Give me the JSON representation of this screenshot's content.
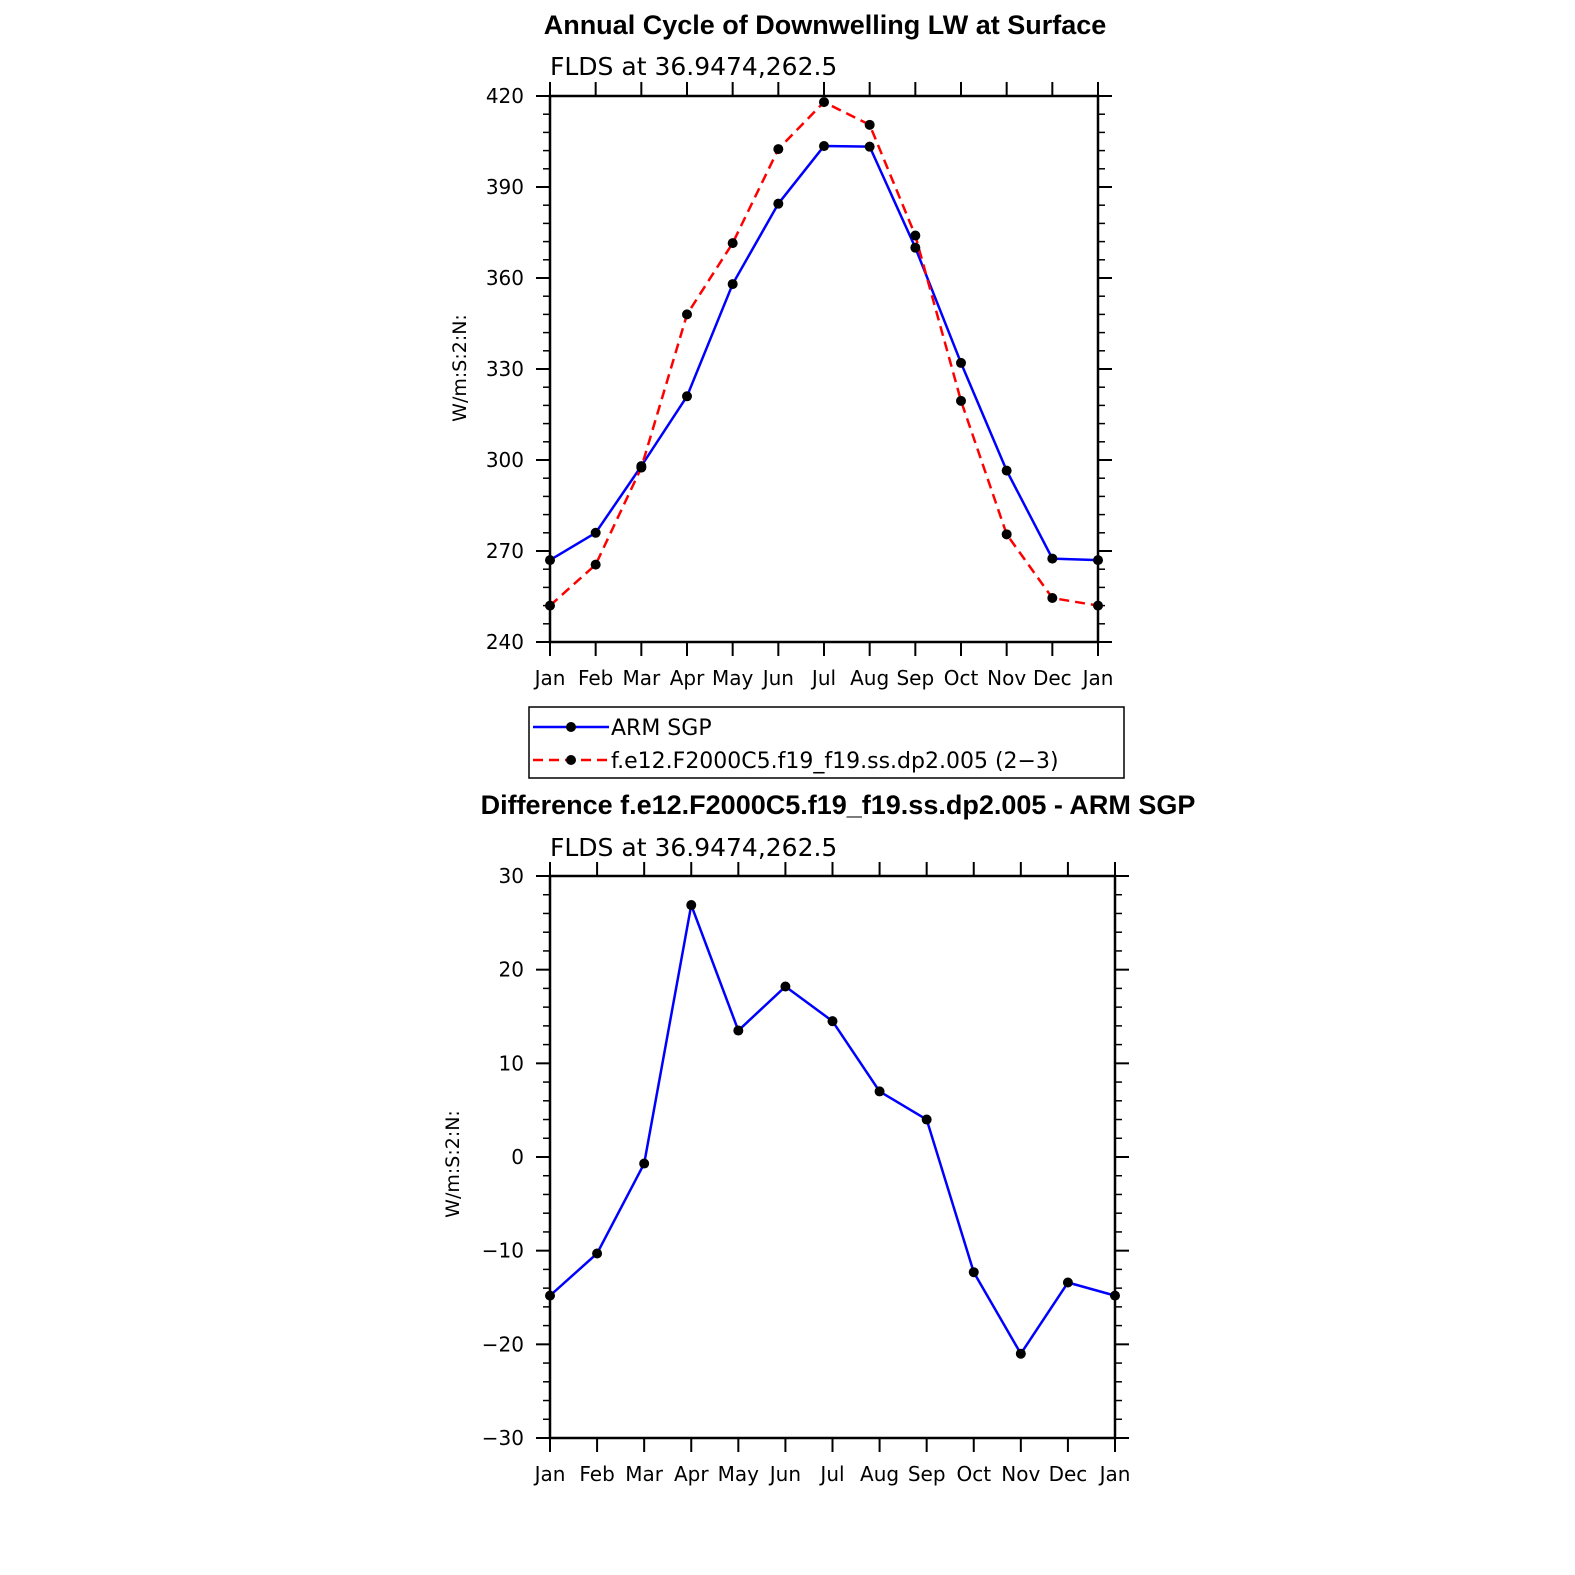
{
  "chart_data": [
    {
      "type": "line",
      "title": "Annual Cycle of Downwelling LW at Surface",
      "subtitle": "FLDS at 36.9474,262.5",
      "xlabel": "",
      "ylabel": "W/m:S:2:N:",
      "categories": [
        "Jan",
        "Feb",
        "Mar",
        "Apr",
        "May",
        "Jun",
        "Jul",
        "Aug",
        "Sep",
        "Oct",
        "Nov",
        "Dec",
        "Jan"
      ],
      "ylim": [
        240,
        420
      ],
      "yticks": [
        "240",
        "270",
        "300",
        "330",
        "360",
        "390",
        "420"
      ],
      "legend_position": "below",
      "series": [
        {
          "name": "ARM SGP",
          "color": "#0000ff",
          "dash": "solid",
          "values": [
            267,
            276,
            298,
            321,
            358,
            384.5,
            403.5,
            403.3,
            370,
            332,
            296.5,
            267.5,
            267
          ]
        },
        {
          "name": "f.e12.F2000C5.f19_f19.ss.dp2.005 (2−3)",
          "color": "#ff0000",
          "dash": "dashed",
          "values": [
            252,
            265.5,
            297.5,
            348,
            371.5,
            402.5,
            418,
            410.5,
            374,
            319.5,
            275.5,
            254.5,
            252
          ]
        }
      ]
    },
    {
      "type": "line",
      "title": "Difference f.e12.F2000C5.f19_f19.ss.dp2.005 - ARM SGP",
      "subtitle": "FLDS at 36.9474,262.5",
      "xlabel": "",
      "ylabel": "W/m:S:2:N:",
      "categories": [
        "Jan",
        "Feb",
        "Mar",
        "Apr",
        "May",
        "Jun",
        "Jul",
        "Aug",
        "Sep",
        "Oct",
        "Nov",
        "Dec",
        "Jan"
      ],
      "ylim": [
        -30,
        30
      ],
      "yticks": [
        "−30",
        "−20",
        "−10",
        "0",
        "10",
        "20",
        "30"
      ],
      "series": [
        {
          "name": "",
          "color": "#0000ff",
          "dash": "solid",
          "values": [
            -14.8,
            -10.3,
            -0.7,
            26.9,
            13.5,
            18.2,
            14.5,
            7,
            4,
            -12.3,
            -21,
            -13.4,
            -14.8
          ]
        }
      ]
    }
  ]
}
